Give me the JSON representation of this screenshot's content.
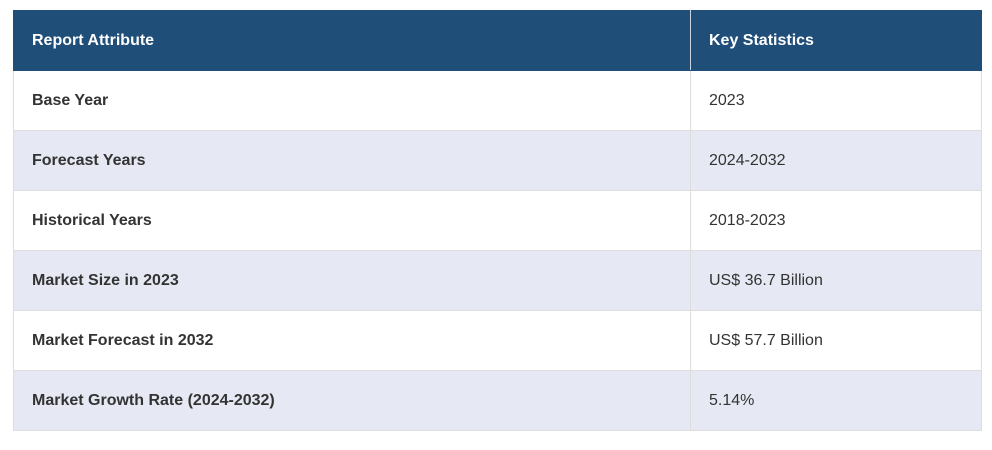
{
  "table": {
    "header": [
      "Report Attribute",
      "Key Statistics"
    ],
    "rows": [
      [
        "Base Year",
        "2023"
      ],
      [
        "Forecast Years",
        "2024-2032"
      ],
      [
        "Historical Years",
        "2018-2023"
      ],
      [
        "Market Size in 2023",
        "US$ 36.7 Billion"
      ],
      [
        "Market Forecast in 2032",
        "US$ 57.7 Billion"
      ],
      [
        "Market Growth Rate (2024-2032)",
        "5.14%"
      ]
    ]
  }
}
